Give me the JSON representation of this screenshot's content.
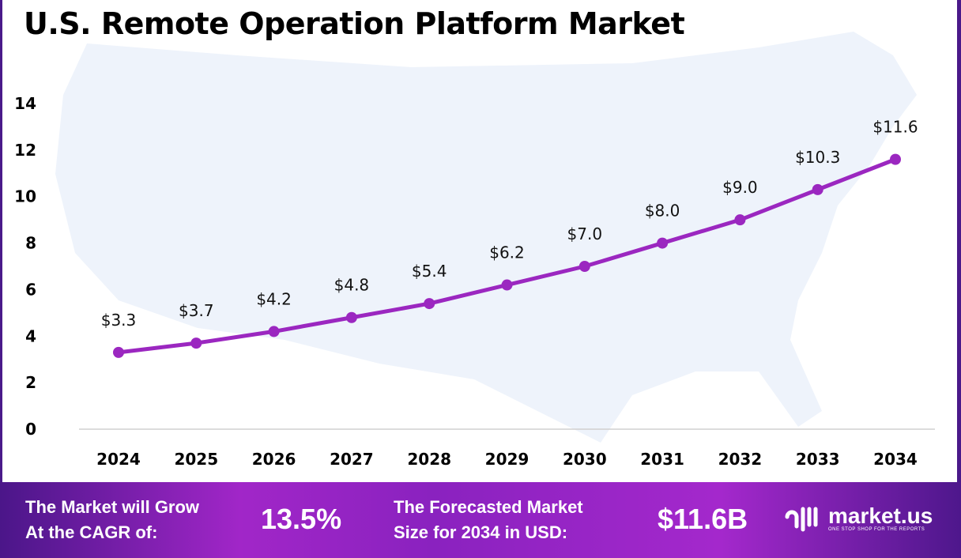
{
  "chart_data": {
    "type": "line",
    "title": "U.S. Remote Operation Platform Market",
    "categories": [
      "2024",
      "2025",
      "2026",
      "2027",
      "2028",
      "2029",
      "2030",
      "2031",
      "2032",
      "2033",
      "2034"
    ],
    "values": [
      3.3,
      3.7,
      4.2,
      4.8,
      5.4,
      6.2,
      7.0,
      8.0,
      9.0,
      10.3,
      11.6
    ],
    "data_labels": [
      "$3.3",
      "$3.7",
      "$4.2",
      "$4.8",
      "$5.4",
      "$6.2",
      "$7.0",
      "$8.0",
      "$9.0",
      "$10.3",
      "$11.6"
    ],
    "yticks": [
      "0",
      "2",
      "4",
      "6",
      "8",
      "10",
      "12",
      "14"
    ],
    "ylim": [
      0,
      14
    ],
    "xlabel": "",
    "ylabel": "",
    "grid": false,
    "line_color": "#9b27c0",
    "background": "US map silhouette"
  },
  "footer": {
    "cagr_text_1": "The Market will Grow",
    "cagr_text_2": "At the CAGR of:",
    "cagr_value": "13.5%",
    "forecast_text_1": "The Forecasted Market",
    "forecast_text_2": "Size for 2034 in USD:",
    "forecast_value": "$11.6B",
    "brand": "market.us",
    "brand_tagline": "ONE STOP SHOP FOR THE REPORTS"
  }
}
